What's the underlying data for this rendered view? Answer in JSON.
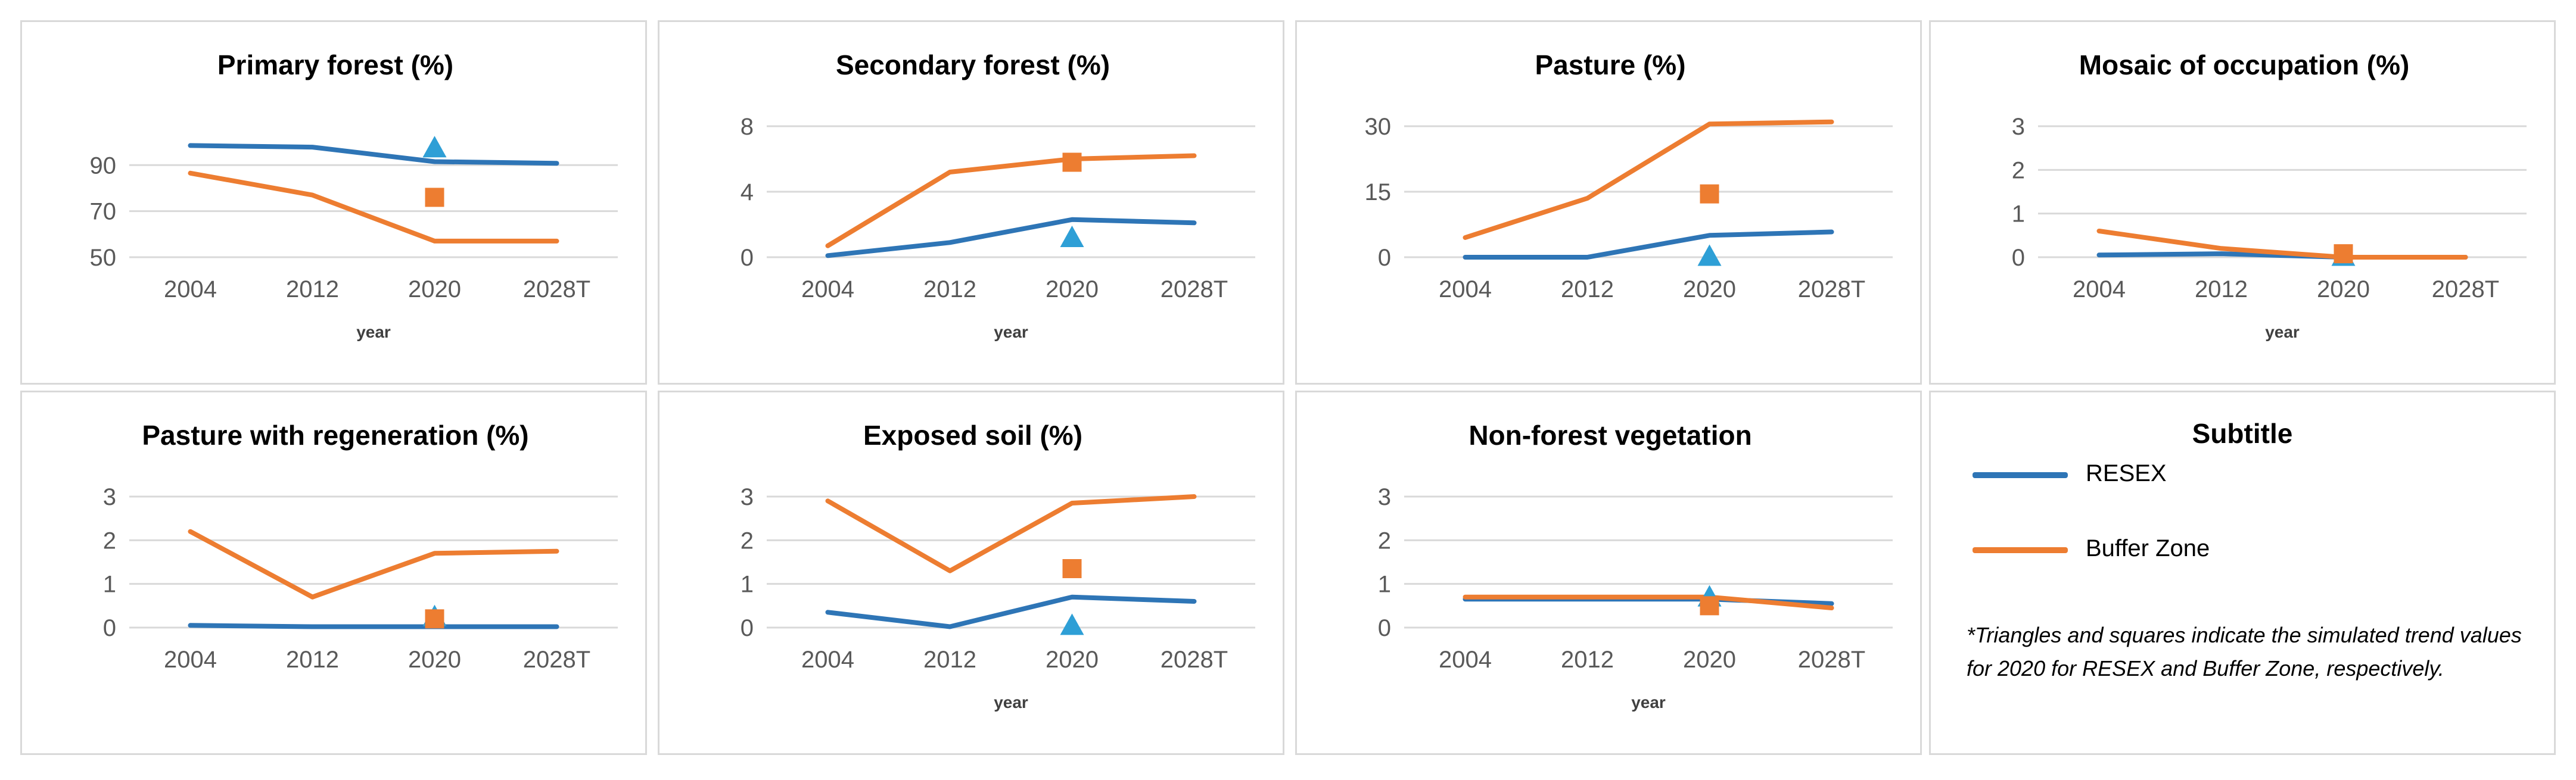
{
  "colors": {
    "resex": "#2e75b6",
    "buffer": "#ed7d31",
    "grid": "#d9d9d9",
    "tick": "#595959"
  },
  "series_names": [
    "RESEX",
    "Buffer Zone"
  ],
  "chart_data": [
    {
      "id": "primary-forest",
      "type": "line",
      "title": "Primary forest (%)",
      "xlabel": "year",
      "ylabel": "",
      "categories": [
        "2004",
        "2012",
        "2020",
        "2028T"
      ],
      "yticks": [
        50,
        70,
        90
      ],
      "ylim": [
        50,
        103
      ],
      "series": [
        {
          "name": "RESEX",
          "values": [
            98.5,
            97.8,
            91.5,
            90.8
          ]
        },
        {
          "name": "Buffer Zone",
          "values": [
            86.5,
            77,
            57,
            57
          ]
        }
      ],
      "markers": [
        {
          "series": "RESEX",
          "shape": "triangle",
          "category": "2020",
          "value": 97.5
        },
        {
          "series": "Buffer Zone",
          "shape": "square",
          "category": "2020",
          "value": 76
        }
      ]
    },
    {
      "id": "secondary-forest",
      "type": "line",
      "title": "Secondary forest (%)",
      "xlabel": "year",
      "ylabel": "",
      "categories": [
        "2004",
        "2012",
        "2020",
        "2028T"
      ],
      "yticks": [
        0,
        4,
        8
      ],
      "ylim": [
        0,
        8
      ],
      "series": [
        {
          "name": "RESEX",
          "values": [
            0.1,
            0.9,
            2.3,
            2.1
          ]
        },
        {
          "name": "Buffer Zone",
          "values": [
            0.7,
            5.2,
            6,
            6.2
          ]
        }
      ],
      "markers": [
        {
          "series": "RESEX",
          "shape": "triangle",
          "category": "2020",
          "value": 1.2
        },
        {
          "series": "Buffer Zone",
          "shape": "square",
          "category": "2020",
          "value": 5.8
        }
      ]
    },
    {
      "id": "pasture",
      "type": "line",
      "title": "Pasture (%)",
      "xlabel": "",
      "ylabel": "",
      "categories": [
        "2004",
        "2012",
        "2020",
        "2028T"
      ],
      "yticks": [
        0,
        15,
        30
      ],
      "ylim": [
        0,
        30
      ],
      "series": [
        {
          "name": "RESEX",
          "values": [
            0,
            0,
            5,
            5.8
          ]
        },
        {
          "name": "Buffer Zone",
          "values": [
            4.5,
            13.5,
            30.5,
            31
          ]
        }
      ],
      "markers": [
        {
          "series": "RESEX",
          "shape": "triangle",
          "category": "2020",
          "value": 0.2
        },
        {
          "series": "Buffer Zone",
          "shape": "square",
          "category": "2020",
          "value": 14.5
        }
      ]
    },
    {
      "id": "mosaic",
      "type": "line",
      "title": "Mosaic of occupation (%)",
      "xlabel": "year",
      "ylabel": "",
      "categories": [
        "2004",
        "2012",
        "2020",
        "2028T"
      ],
      "yticks": [
        0,
        1,
        2,
        3
      ],
      "ylim": [
        0,
        3
      ],
      "series": [
        {
          "name": "RESEX",
          "values": [
            0.05,
            0.08,
            0,
            0
          ]
        },
        {
          "name": "Buffer Zone",
          "values": [
            0.6,
            0.2,
            0,
            0
          ]
        }
      ],
      "markers": [
        {
          "series": "RESEX",
          "shape": "triangle",
          "category": "2020",
          "value": 0.02
        },
        {
          "series": "Buffer Zone",
          "shape": "square",
          "category": "2020",
          "value": 0.08
        }
      ]
    },
    {
      "id": "pasture-regeneration",
      "type": "line",
      "title": "Pasture with regeneration (%)",
      "xlabel": "",
      "ylabel": "",
      "categories": [
        "2004",
        "2012",
        "2020",
        "2028T"
      ],
      "yticks": [
        0,
        1,
        2,
        3
      ],
      "ylim": [
        0,
        3
      ],
      "series": [
        {
          "name": "RESEX",
          "values": [
            0.05,
            0.02,
            0.02,
            0.02
          ]
        },
        {
          "name": "Buffer Zone",
          "values": [
            2.2,
            0.7,
            1.7,
            1.75
          ]
        }
      ],
      "markers": [
        {
          "series": "RESEX",
          "shape": "triangle",
          "category": "2020",
          "value": 0.25
        },
        {
          "series": "Buffer Zone",
          "shape": "square",
          "category": "2020",
          "value": 0.2
        }
      ]
    },
    {
      "id": "exposed-soil",
      "type": "line",
      "title": "Exposed soil (%)",
      "xlabel": "year",
      "ylabel": "",
      "categories": [
        "2004",
        "2012",
        "2020",
        "2028T"
      ],
      "yticks": [
        0,
        1,
        2,
        3
      ],
      "ylim": [
        0,
        3
      ],
      "series": [
        {
          "name": "RESEX",
          "values": [
            0.35,
            0.02,
            0.7,
            0.6
          ]
        },
        {
          "name": "Buffer Zone",
          "values": [
            2.9,
            1.3,
            2.85,
            3
          ]
        }
      ],
      "markers": [
        {
          "series": "RESEX",
          "shape": "triangle",
          "category": "2020",
          "value": 0.05
        },
        {
          "series": "Buffer Zone",
          "shape": "square",
          "category": "2020",
          "value": 1.35
        }
      ]
    },
    {
      "id": "non-forest",
      "type": "line",
      "title": "Non-forest vegetation",
      "xlabel": "year",
      "ylabel": "",
      "categories": [
        "2004",
        "2012",
        "2020",
        "2028T"
      ],
      "yticks": [
        0,
        1,
        2,
        3
      ],
      "ylim": [
        0,
        3
      ],
      "series": [
        {
          "name": "RESEX",
          "values": [
            0.65,
            0.65,
            0.65,
            0.55
          ]
        },
        {
          "name": "Buffer Zone",
          "values": [
            0.7,
            0.7,
            0.7,
            0.45
          ]
        }
      ],
      "markers": [
        {
          "series": "RESEX",
          "shape": "triangle",
          "category": "2020",
          "value": 0.7
        },
        {
          "series": "Buffer Zone",
          "shape": "square",
          "category": "2020",
          "value": 0.5
        }
      ]
    }
  ],
  "legend": {
    "title": "Subtitle",
    "items": [
      {
        "label": "RESEX",
        "color": "#2e75b6"
      },
      {
        "label": "Buffer Zone",
        "color": "#ed7d31"
      }
    ],
    "note": "*Triangles and squares indicate the simulated trend values for 2020 for RESEX and Buffer Zone, respectively."
  }
}
